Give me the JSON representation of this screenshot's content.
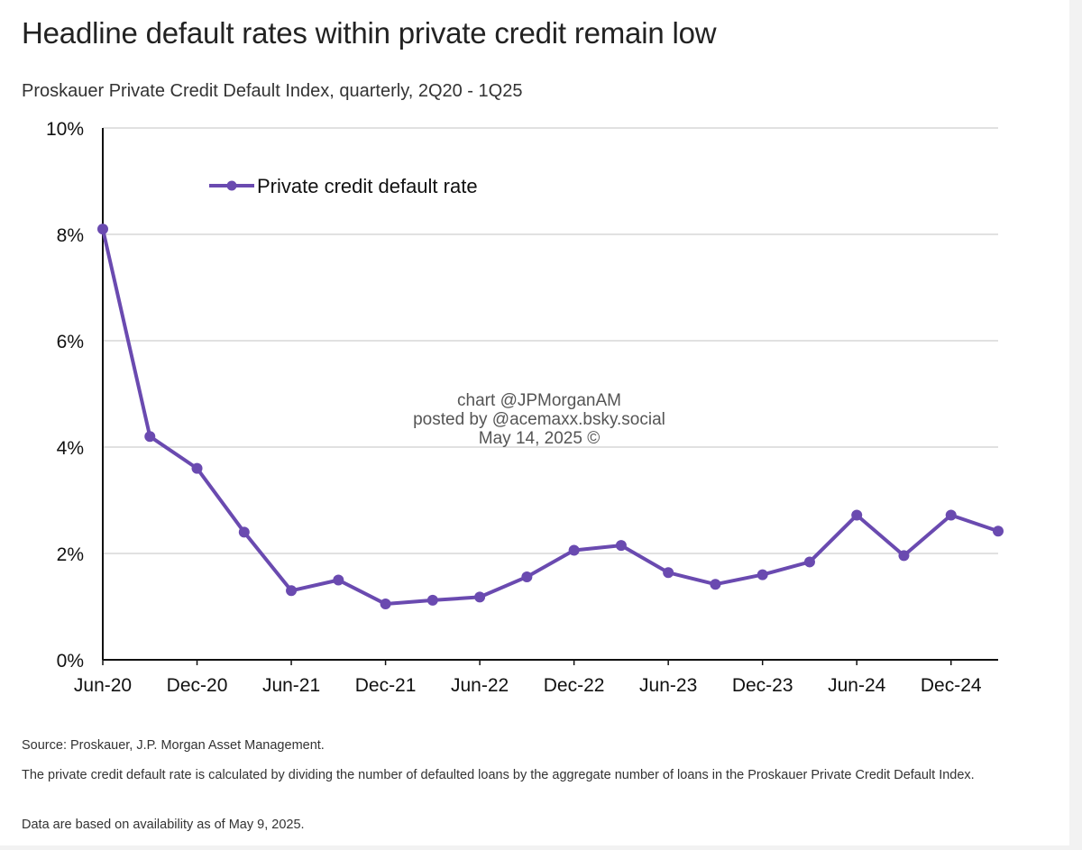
{
  "header": {
    "title": "Headline default rates within private credit remain low",
    "subtitle": "Proskauer Private Credit Default Index, quarterly, 2Q20 - 1Q25"
  },
  "chart_data": {
    "type": "line",
    "x": [
      "Jun-20",
      "Sep-20",
      "Dec-20",
      "Mar-21",
      "Jun-21",
      "Sep-21",
      "Dec-21",
      "Mar-22",
      "Jun-22",
      "Sep-22",
      "Dec-22",
      "Mar-23",
      "Jun-23",
      "Sep-23",
      "Dec-23",
      "Mar-24",
      "Jun-24",
      "Sep-24",
      "Dec-24",
      "Mar-25"
    ],
    "series": [
      {
        "name": "Private credit default rate",
        "color": "#6a4ab0",
        "values": [
          8.1,
          4.2,
          3.6,
          2.4,
          1.3,
          1.5,
          1.05,
          1.12,
          1.18,
          1.56,
          2.06,
          2.15,
          1.64,
          1.42,
          1.6,
          1.84,
          2.72,
          1.96,
          2.72,
          2.42
        ]
      }
    ],
    "xtick_labels": [
      "Jun-20",
      "Dec-20",
      "Jun-21",
      "Dec-21",
      "Jun-22",
      "Dec-22",
      "Jun-23",
      "Dec-23",
      "Jun-24",
      "Dec-24"
    ],
    "yticks": [
      0,
      2,
      4,
      6,
      8,
      10
    ],
    "ytick_labels": [
      "0%",
      "2%",
      "4%",
      "6%",
      "8%",
      "10%"
    ],
    "ylim": [
      0,
      10
    ],
    "grid": true,
    "legend_position": "top-left"
  },
  "watermark": {
    "line1": "chart @JPMorganAM",
    "line2": "posted by @acemaxx.bsky.social",
    "line3": "May 14, 2025 ©"
  },
  "notes": {
    "source": "Source: Proskauer, J.P. Morgan Asset Management.",
    "definition": "The private credit default rate is calculated by dividing the number of defaulted loans by the aggregate number of loans in the Proskauer Private Credit Default Index.",
    "availability": "Data are based on availability as of May 9, 2025."
  }
}
